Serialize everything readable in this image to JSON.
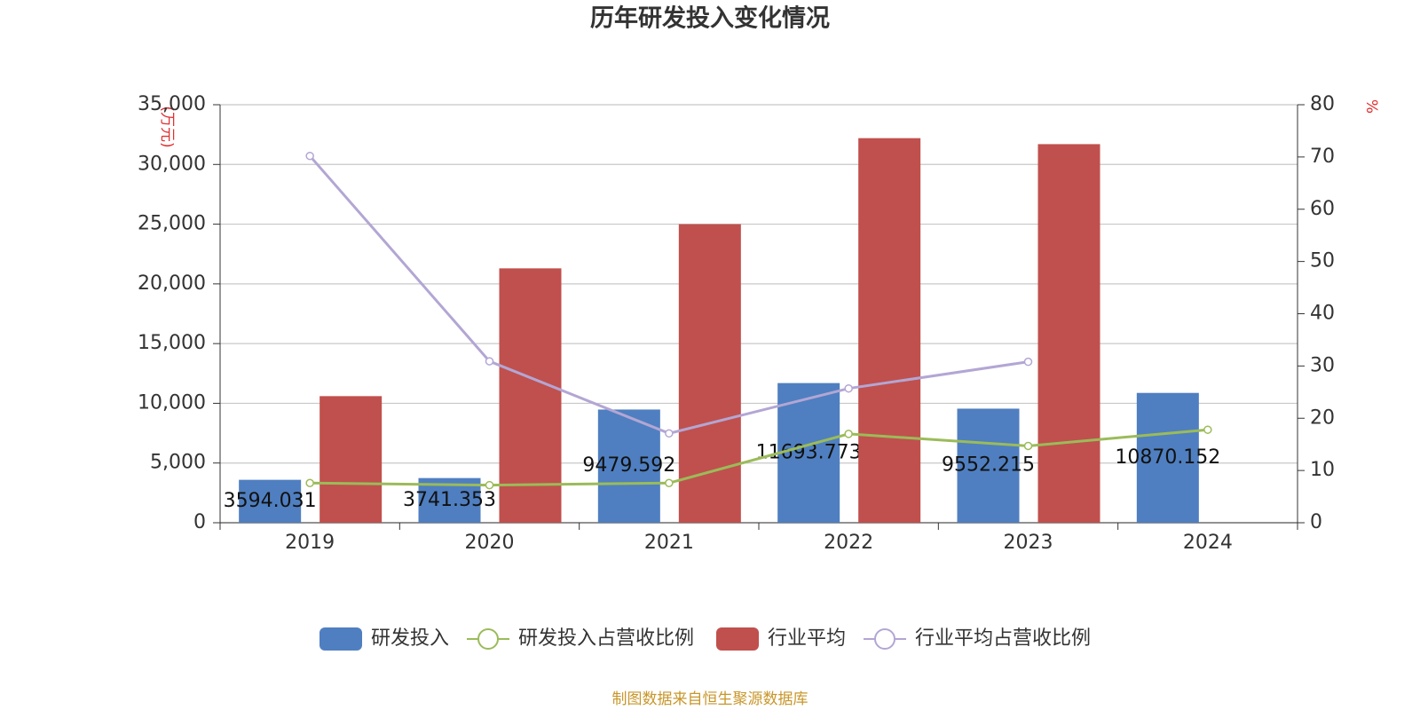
{
  "chart_data": {
    "type": "bar-line",
    "title": "历年研发投入变化情况",
    "y_label": "(万元)",
    "y2_label": "%",
    "source": "制图数据来自恒生聚源数据库",
    "categories": [
      "2019",
      "2020",
      "2021",
      "2022",
      "2023",
      "2024"
    ],
    "series": [
      {
        "name": "研发投入",
        "type": "bar",
        "color": "#4f7fc0",
        "values": [
          3594.031,
          3741.353,
          9479.592,
          11693.773,
          9552.215,
          10870.152
        ]
      },
      {
        "name": "研发投入占营收比例",
        "type": "line",
        "axis": "y2",
        "color": "#9bbb59",
        "values": [
          7.6,
          7.2,
          7.6,
          17.0,
          14.7,
          17.8
        ]
      },
      {
        "name": "行业平均",
        "type": "bar",
        "color": "#c0504d",
        "values": [
          10600,
          21300,
          25000,
          32200,
          31700,
          null
        ]
      },
      {
        "name": "行业平均占营收比例",
        "type": "line",
        "axis": "y2",
        "color": "#b3a6d4",
        "values": [
          70.2,
          30.9,
          17.1,
          25.7,
          30.8,
          null
        ]
      }
    ],
    "ylim": [
      0,
      35000
    ],
    "yticks": [
      0,
      {
        "value": 5000,
        "label": "5,000"
      },
      {
        "value": 10000,
        "label": "10,000"
      },
      {
        "value": 15000,
        "label": "15,000"
      },
      {
        "value": 20000,
        "label": "20,000"
      },
      {
        "value": 25000,
        "label": "25,000"
      },
      {
        "value": 30000,
        "label": "30,000"
      },
      {
        "value": 35000,
        "label": "35,000"
      }
    ],
    "y2lim": [
      0,
      80
    ],
    "y2ticks": [
      0,
      10,
      20,
      30,
      40,
      50,
      60,
      70,
      80
    ],
    "grid": true
  }
}
